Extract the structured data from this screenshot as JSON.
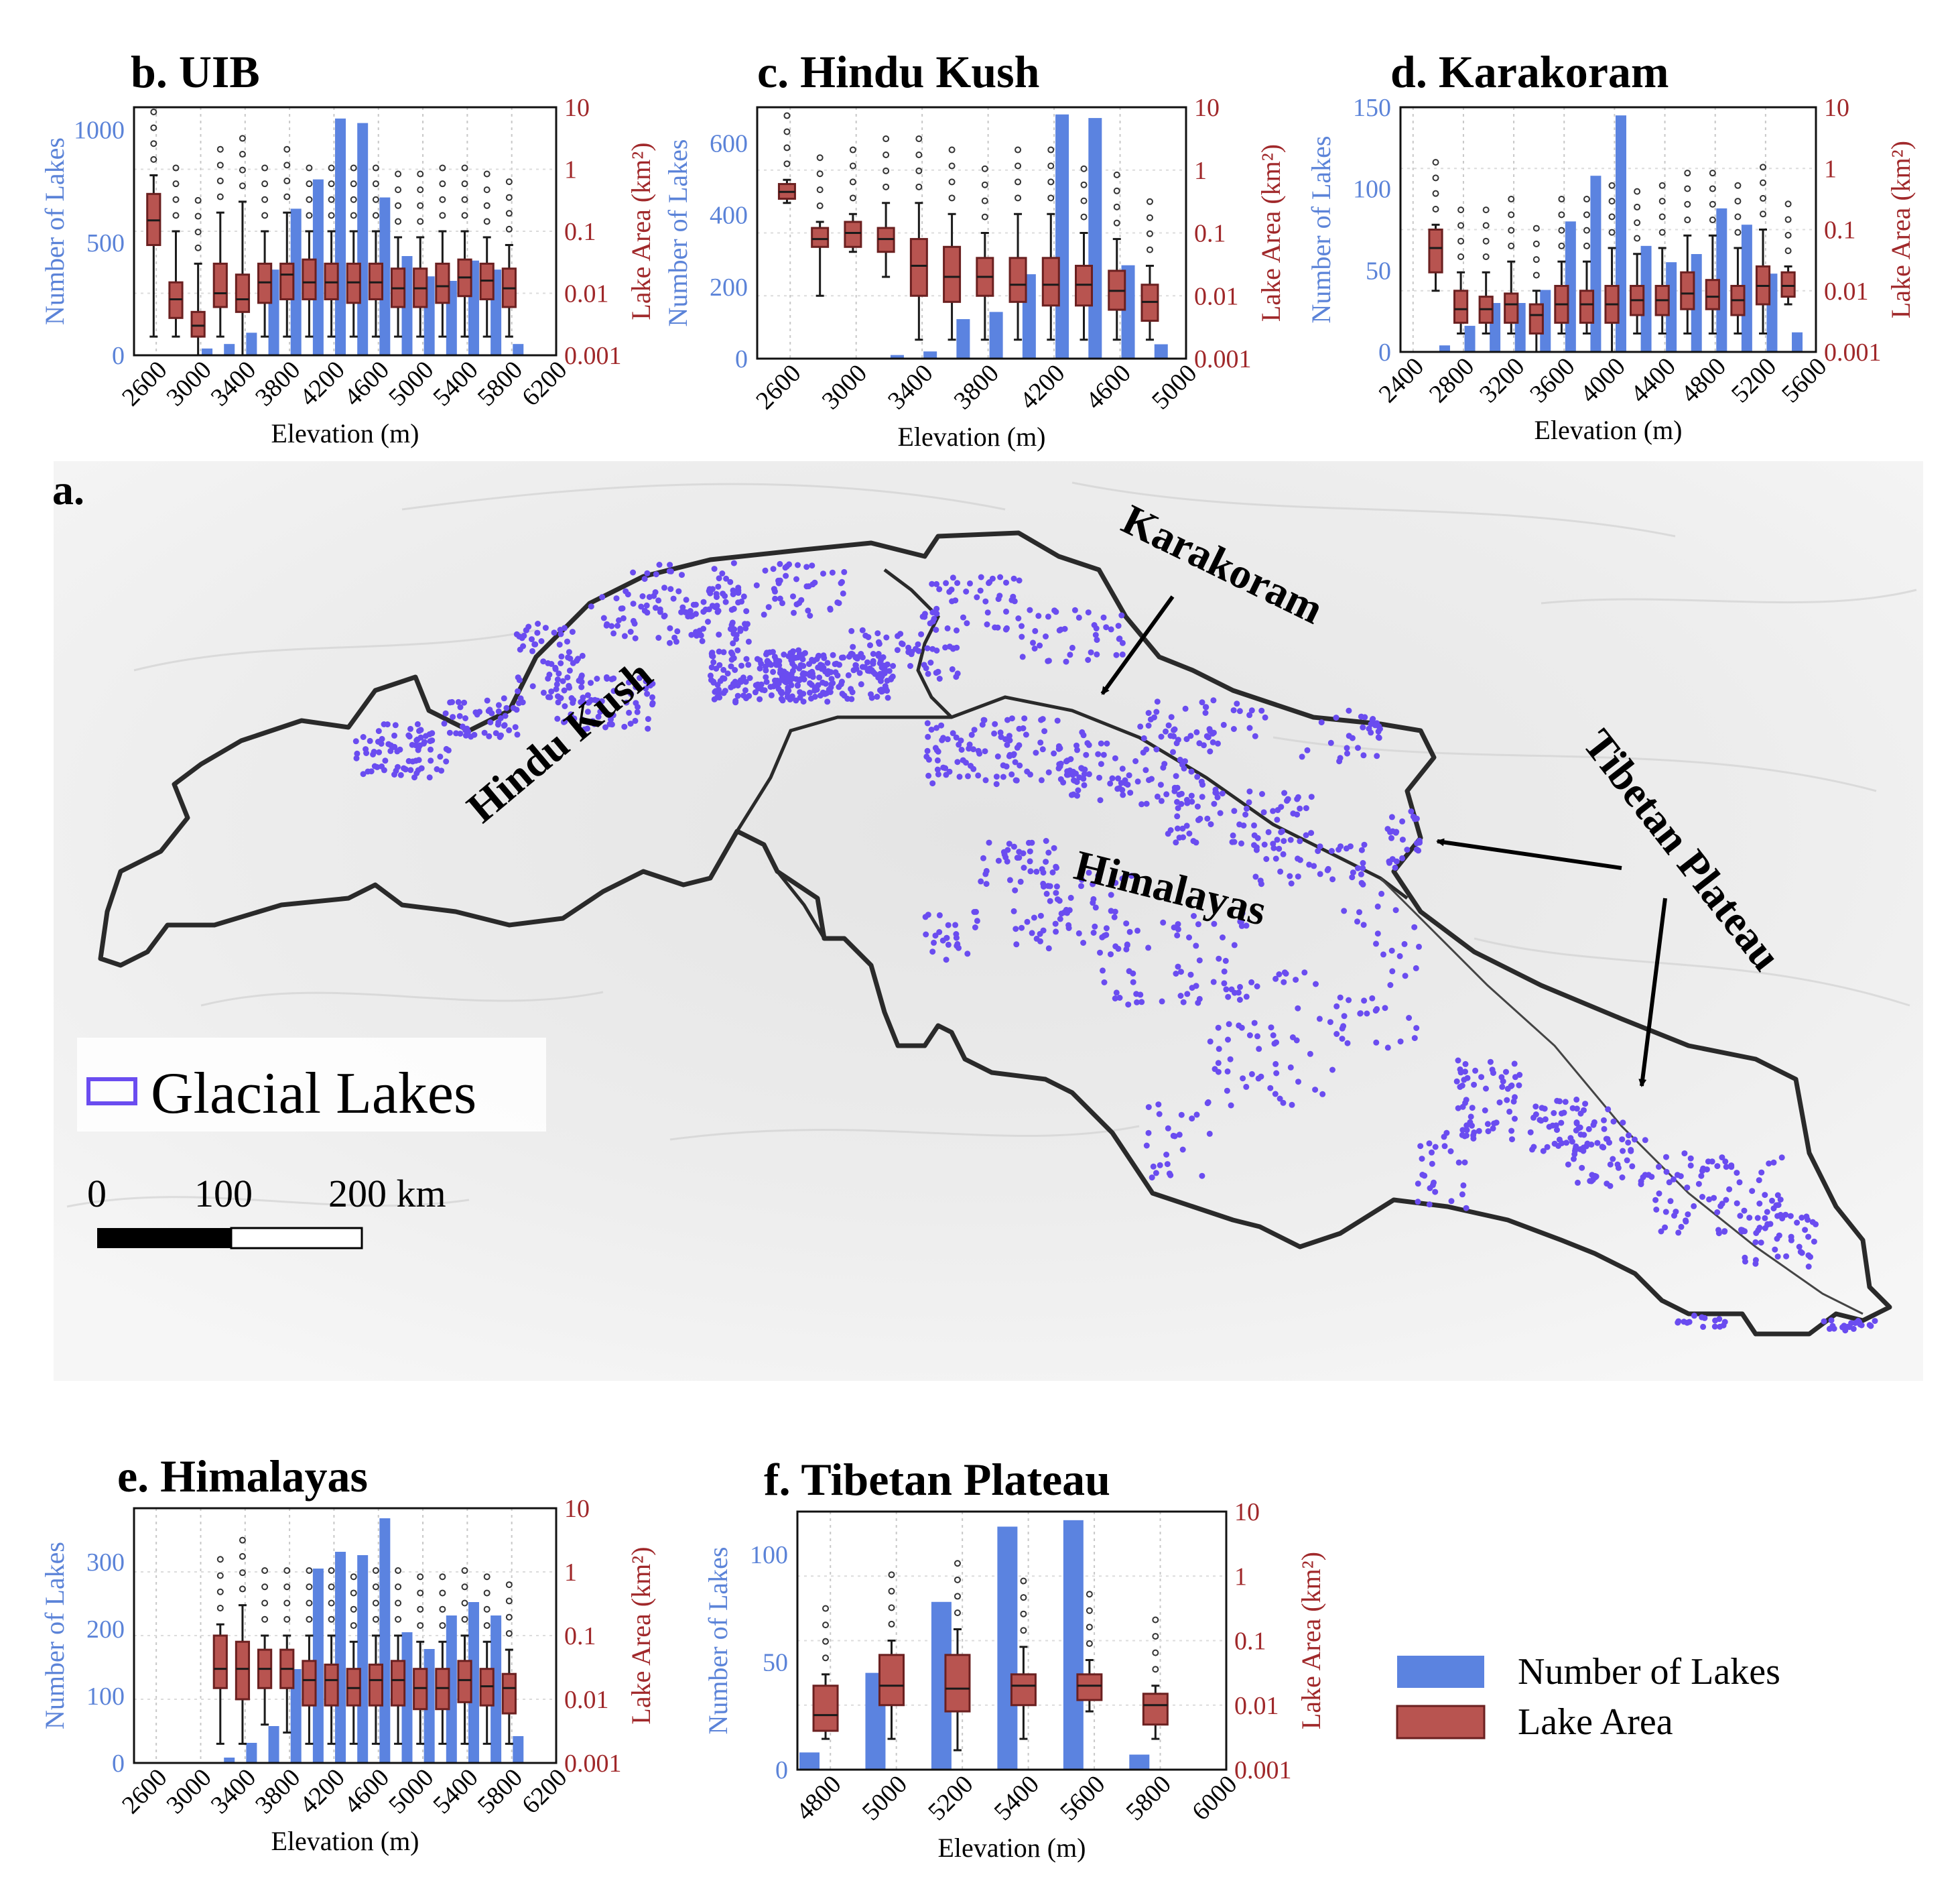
{
  "colors": {
    "bar": "#5b83e0",
    "box": "#b85450",
    "boxStroke": "#6b2020",
    "left_axis_text": "#5b83d8",
    "right_axis_text": "#a0282a",
    "lake": "#6a4cf0",
    "border": "#2a2a2a",
    "map_bg": "#ececec"
  },
  "map": {
    "panel_label": "a.",
    "region_labels": {
      "karakoram": "Karakoram",
      "hindu_kush": "Hindu Kush",
      "himalayas": "Himalayas",
      "tibetan_plateau": "Tibetan Plateau"
    },
    "legend_label": "Glacial Lakes",
    "scale_labels": [
      "0",
      "100",
      "200 km"
    ]
  },
  "legend": {
    "bar_label": "Number of Lakes",
    "box_label": "Lake Area"
  },
  "chart_data": [
    {
      "id": "b",
      "type": "bar",
      "title": "b. UIB",
      "xlabel": "Elevation (m)",
      "ylabel": "Number of Lakes",
      "y2label": "Lake Area (km²)",
      "xlim": [
        2400,
        6200
      ],
      "xticks": [
        2600,
        3000,
        3400,
        3800,
        4200,
        4600,
        5000,
        5400,
        5800,
        6200
      ],
      "ylim": [
        0,
        1100
      ],
      "yticks": [
        0,
        500,
        1000
      ],
      "y2scale": "log",
      "y2ticks": [
        "0.001",
        "0.01",
        "0.1",
        "1",
        "10"
      ],
      "bars": [
        {
          "x": 3000,
          "count": 30
        },
        {
          "x": 3200,
          "count": 50
        },
        {
          "x": 3400,
          "count": 100
        },
        {
          "x": 3600,
          "count": 380
        },
        {
          "x": 3800,
          "count": 650
        },
        {
          "x": 4000,
          "count": 780
        },
        {
          "x": 4200,
          "count": 1050
        },
        {
          "x": 4400,
          "count": 1030
        },
        {
          "x": 4600,
          "count": 700
        },
        {
          "x": 4800,
          "count": 440
        },
        {
          "x": 5000,
          "count": 350
        },
        {
          "x": 5200,
          "count": 330
        },
        {
          "x": 5400,
          "count": 420
        },
        {
          "x": 5600,
          "count": 380
        },
        {
          "x": 5800,
          "count": 50
        }
      ],
      "boxes": [
        {
          "x": 2600,
          "q1": 0.06,
          "med": 0.15,
          "q3": 0.4,
          "lo": 0.002,
          "hi": 0.8
        },
        {
          "x": 2800,
          "q1": 0.004,
          "med": 0.008,
          "q3": 0.015,
          "lo": 0.002,
          "hi": 0.1
        },
        {
          "x": 3000,
          "q1": 0.002,
          "med": 0.003,
          "q3": 0.005,
          "lo": 0.001,
          "hi": 0.03
        },
        {
          "x": 3200,
          "q1": 0.006,
          "med": 0.01,
          "q3": 0.03,
          "lo": 0.002,
          "hi": 0.2
        },
        {
          "x": 3400,
          "q1": 0.005,
          "med": 0.008,
          "q3": 0.02,
          "lo": 0.001,
          "hi": 0.3
        },
        {
          "x": 3600,
          "q1": 0.007,
          "med": 0.015,
          "q3": 0.03,
          "lo": 0.002,
          "hi": 0.1
        },
        {
          "x": 3800,
          "q1": 0.008,
          "med": 0.02,
          "q3": 0.03,
          "lo": 0.002,
          "hi": 0.2
        },
        {
          "x": 4000,
          "q1": 0.008,
          "med": 0.015,
          "q3": 0.035,
          "lo": 0.002,
          "hi": 0.1
        },
        {
          "x": 4200,
          "q1": 0.008,
          "med": 0.015,
          "q3": 0.03,
          "lo": 0.002,
          "hi": 0.1
        },
        {
          "x": 4400,
          "q1": 0.007,
          "med": 0.015,
          "q3": 0.03,
          "lo": 0.002,
          "hi": 0.1
        },
        {
          "x": 4600,
          "q1": 0.008,
          "med": 0.015,
          "q3": 0.03,
          "lo": 0.002,
          "hi": 0.1
        },
        {
          "x": 4800,
          "q1": 0.006,
          "med": 0.012,
          "q3": 0.025,
          "lo": 0.002,
          "hi": 0.08
        },
        {
          "x": 5000,
          "q1": 0.006,
          "med": 0.012,
          "q3": 0.025,
          "lo": 0.002,
          "hi": 0.08
        },
        {
          "x": 5200,
          "q1": 0.007,
          "med": 0.013,
          "q3": 0.03,
          "lo": 0.002,
          "hi": 0.1
        },
        {
          "x": 5400,
          "q1": 0.009,
          "med": 0.018,
          "q3": 0.035,
          "lo": 0.002,
          "hi": 0.1
        },
        {
          "x": 5600,
          "q1": 0.008,
          "med": 0.016,
          "q3": 0.03,
          "lo": 0.002,
          "hi": 0.08
        },
        {
          "x": 5800,
          "q1": 0.006,
          "med": 0.012,
          "q3": 0.025,
          "lo": 0.002,
          "hi": 0.06
        }
      ]
    },
    {
      "id": "c",
      "type": "bar",
      "title": "c. Hindu Kush",
      "xlabel": "Elevation (m)",
      "ylabel": "Number of Lakes",
      "y2label": "Lake Area (km²)",
      "xlim": [
        2400,
        5000
      ],
      "xticks": [
        2600,
        3000,
        3400,
        3800,
        4200,
        4600,
        5000
      ],
      "ylim": [
        0,
        700
      ],
      "yticks": [
        0,
        200,
        400,
        600
      ],
      "y2scale": "log",
      "y2ticks": [
        "0.001",
        "0.01",
        "0.1",
        "1",
        "10"
      ],
      "bars": [
        {
          "x": 3200,
          "count": 10
        },
        {
          "x": 3400,
          "count": 20
        },
        {
          "x": 3600,
          "count": 110
        },
        {
          "x": 3800,
          "count": 130
        },
        {
          "x": 4000,
          "count": 235
        },
        {
          "x": 4200,
          "count": 680
        },
        {
          "x": 4400,
          "count": 670
        },
        {
          "x": 4600,
          "count": 260
        },
        {
          "x": 4800,
          "count": 40
        }
      ],
      "boxes": [
        {
          "x": 2600,
          "q1": 0.35,
          "med": 0.45,
          "q3": 0.6,
          "lo": 0.3,
          "hi": 0.7
        },
        {
          "x": 2800,
          "q1": 0.06,
          "med": 0.08,
          "q3": 0.12,
          "lo": 0.01,
          "hi": 0.15
        },
        {
          "x": 3000,
          "q1": 0.06,
          "med": 0.1,
          "q3": 0.15,
          "lo": 0.05,
          "hi": 0.2
        },
        {
          "x": 3200,
          "q1": 0.05,
          "med": 0.08,
          "q3": 0.12,
          "lo": 0.02,
          "hi": 0.3
        },
        {
          "x": 3400,
          "q1": 0.01,
          "med": 0.03,
          "q3": 0.08,
          "lo": 0.002,
          "hi": 0.3
        },
        {
          "x": 3600,
          "q1": 0.008,
          "med": 0.02,
          "q3": 0.06,
          "lo": 0.002,
          "hi": 0.2
        },
        {
          "x": 3800,
          "q1": 0.01,
          "med": 0.02,
          "q3": 0.04,
          "lo": 0.002,
          "hi": 0.1
        },
        {
          "x": 4000,
          "q1": 0.008,
          "med": 0.015,
          "q3": 0.04,
          "lo": 0.002,
          "hi": 0.2
        },
        {
          "x": 4200,
          "q1": 0.007,
          "med": 0.015,
          "q3": 0.04,
          "lo": 0.002,
          "hi": 0.2
        },
        {
          "x": 4400,
          "q1": 0.007,
          "med": 0.015,
          "q3": 0.03,
          "lo": 0.002,
          "hi": 0.1
        },
        {
          "x": 4600,
          "q1": 0.006,
          "med": 0.012,
          "q3": 0.025,
          "lo": 0.002,
          "hi": 0.08
        },
        {
          "x": 4800,
          "q1": 0.004,
          "med": 0.008,
          "q3": 0.015,
          "lo": 0.002,
          "hi": 0.03
        }
      ]
    },
    {
      "id": "d",
      "type": "bar",
      "title": "d. Karakoram",
      "xlabel": "Elevation (m)",
      "ylabel": "Number of Lakes",
      "y2label": "Lake Area (km²)",
      "xlim": [
        2300,
        5600
      ],
      "xticks": [
        2400,
        2800,
        3200,
        3600,
        4000,
        4400,
        4800,
        5200,
        5600
      ],
      "ylim": [
        0,
        150
      ],
      "yticks": [
        0,
        50,
        100,
        150
      ],
      "y2scale": "log",
      "y2ticks": [
        "0.001",
        "0.01",
        "0.1",
        "1",
        "10"
      ],
      "bars": [
        {
          "x": 2600,
          "count": 4
        },
        {
          "x": 2800,
          "count": 16
        },
        {
          "x": 3000,
          "count": 30
        },
        {
          "x": 3200,
          "count": 30
        },
        {
          "x": 3400,
          "count": 38
        },
        {
          "x": 3600,
          "count": 80
        },
        {
          "x": 3800,
          "count": 108
        },
        {
          "x": 4000,
          "count": 145
        },
        {
          "x": 4200,
          "count": 65
        },
        {
          "x": 4400,
          "count": 55
        },
        {
          "x": 4600,
          "count": 60
        },
        {
          "x": 4800,
          "count": 88
        },
        {
          "x": 5000,
          "count": 78
        },
        {
          "x": 5200,
          "count": 48
        },
        {
          "x": 5400,
          "count": 12
        }
      ],
      "boxes": [
        {
          "x": 2600,
          "q1": 0.02,
          "med": 0.05,
          "q3": 0.1,
          "lo": 0.01,
          "hi": 0.12
        },
        {
          "x": 2800,
          "q1": 0.003,
          "med": 0.005,
          "q3": 0.01,
          "lo": 0.002,
          "hi": 0.02
        },
        {
          "x": 3000,
          "q1": 0.003,
          "med": 0.005,
          "q3": 0.008,
          "lo": 0.002,
          "hi": 0.02
        },
        {
          "x": 3200,
          "q1": 0.003,
          "med": 0.006,
          "q3": 0.009,
          "lo": 0.002,
          "hi": 0.03
        },
        {
          "x": 3400,
          "q1": 0.002,
          "med": 0.004,
          "q3": 0.006,
          "lo": 0.001,
          "hi": 0.01
        },
        {
          "x": 3600,
          "q1": 0.003,
          "med": 0.006,
          "q3": 0.012,
          "lo": 0.002,
          "hi": 0.03
        },
        {
          "x": 3800,
          "q1": 0.003,
          "med": 0.006,
          "q3": 0.01,
          "lo": 0.002,
          "hi": 0.03
        },
        {
          "x": 4000,
          "q1": 0.003,
          "med": 0.006,
          "q3": 0.012,
          "lo": 0.001,
          "hi": 0.05
        },
        {
          "x": 4200,
          "q1": 0.004,
          "med": 0.007,
          "q3": 0.012,
          "lo": 0.002,
          "hi": 0.04
        },
        {
          "x": 4400,
          "q1": 0.004,
          "med": 0.007,
          "q3": 0.012,
          "lo": 0.002,
          "hi": 0.05
        },
        {
          "x": 4600,
          "q1": 0.005,
          "med": 0.009,
          "q3": 0.02,
          "lo": 0.002,
          "hi": 0.08
        },
        {
          "x": 4800,
          "q1": 0.005,
          "med": 0.008,
          "q3": 0.015,
          "lo": 0.002,
          "hi": 0.08
        },
        {
          "x": 5000,
          "q1": 0.004,
          "med": 0.007,
          "q3": 0.012,
          "lo": 0.002,
          "hi": 0.05
        },
        {
          "x": 5200,
          "q1": 0.006,
          "med": 0.012,
          "q3": 0.025,
          "lo": 0.002,
          "hi": 0.1
        },
        {
          "x": 5400,
          "q1": 0.008,
          "med": 0.012,
          "q3": 0.02,
          "lo": 0.006,
          "hi": 0.025
        }
      ]
    },
    {
      "id": "e",
      "type": "bar",
      "title": "e. Himalayas",
      "xlabel": "Elevation (m)",
      "ylabel": "Number of Lakes",
      "y2label": "Lake Area (km²)",
      "xlim": [
        2400,
        6200
      ],
      "xticks": [
        2600,
        3000,
        3400,
        3800,
        4200,
        4600,
        5000,
        5400,
        5800,
        6200
      ],
      "ylim": [
        0,
        380
      ],
      "yticks": [
        0,
        100,
        200,
        300
      ],
      "y2scale": "log",
      "y2ticks": [
        "0.001",
        "0.01",
        "0.1",
        "1",
        "10"
      ],
      "bars": [
        {
          "x": 3200,
          "count": 8
        },
        {
          "x": 3400,
          "count": 30
        },
        {
          "x": 3600,
          "count": 55
        },
        {
          "x": 3800,
          "count": 140
        },
        {
          "x": 4000,
          "count": 290
        },
        {
          "x": 4200,
          "count": 315
        },
        {
          "x": 4400,
          "count": 310
        },
        {
          "x": 4600,
          "count": 365
        },
        {
          "x": 4800,
          "count": 195
        },
        {
          "x": 5000,
          "count": 170
        },
        {
          "x": 5200,
          "count": 220
        },
        {
          "x": 5400,
          "count": 240
        },
        {
          "x": 5600,
          "count": 220
        },
        {
          "x": 5800,
          "count": 40
        }
      ],
      "boxes": [
        {
          "x": 3200,
          "q1": 0.015,
          "med": 0.03,
          "q3": 0.1,
          "lo": 0.002,
          "hi": 0.15
        },
        {
          "x": 3400,
          "q1": 0.01,
          "med": 0.03,
          "q3": 0.08,
          "lo": 0.002,
          "hi": 0.3
        },
        {
          "x": 3600,
          "q1": 0.015,
          "med": 0.03,
          "q3": 0.06,
          "lo": 0.004,
          "hi": 0.1
        },
        {
          "x": 3800,
          "q1": 0.015,
          "med": 0.03,
          "q3": 0.06,
          "lo": 0.003,
          "hi": 0.1
        },
        {
          "x": 4000,
          "q1": 0.008,
          "med": 0.02,
          "q3": 0.04,
          "lo": 0.002,
          "hi": 0.1
        },
        {
          "x": 4200,
          "q1": 0.008,
          "med": 0.02,
          "q3": 0.035,
          "lo": 0.002,
          "hi": 0.1
        },
        {
          "x": 4400,
          "q1": 0.008,
          "med": 0.015,
          "q3": 0.03,
          "lo": 0.002,
          "hi": 0.08
        },
        {
          "x": 4600,
          "q1": 0.008,
          "med": 0.02,
          "q3": 0.035,
          "lo": 0.002,
          "hi": 0.1
        },
        {
          "x": 4800,
          "q1": 0.008,
          "med": 0.02,
          "q3": 0.04,
          "lo": 0.002,
          "hi": 0.1
        },
        {
          "x": 5000,
          "q1": 0.007,
          "med": 0.015,
          "q3": 0.03,
          "lo": 0.002,
          "hi": 0.08
        },
        {
          "x": 5200,
          "q1": 0.007,
          "med": 0.015,
          "q3": 0.03,
          "lo": 0.002,
          "hi": 0.08
        },
        {
          "x": 5400,
          "q1": 0.009,
          "med": 0.02,
          "q3": 0.04,
          "lo": 0.002,
          "hi": 0.1
        },
        {
          "x": 5600,
          "q1": 0.008,
          "med": 0.016,
          "q3": 0.03,
          "lo": 0.002,
          "hi": 0.08
        },
        {
          "x": 5800,
          "q1": 0.006,
          "med": 0.015,
          "q3": 0.025,
          "lo": 0.002,
          "hi": 0.06
        }
      ]
    },
    {
      "id": "f",
      "type": "bar",
      "title": "f. Tibetan Plateau",
      "xlabel": "Elevation (m)",
      "ylabel": "Number of Lakes",
      "y2label": "Lake Area (km²)",
      "xlim": [
        4700,
        6000
      ],
      "xticks": [
        4800,
        5000,
        5200,
        5400,
        5600,
        5800,
        6000
      ],
      "ylim": [
        0,
        120
      ],
      "yticks": [
        0,
        50,
        100
      ],
      "y2scale": "log",
      "y2ticks": [
        "0.001",
        "0.01",
        "0.1",
        "1",
        "10"
      ],
      "bars": [
        {
          "x": 4700,
          "count": 8
        },
        {
          "x": 4900,
          "count": 45
        },
        {
          "x": 5100,
          "count": 78
        },
        {
          "x": 5300,
          "count": 113
        },
        {
          "x": 5500,
          "count": 116
        },
        {
          "x": 5700,
          "count": 7
        }
      ],
      "boxes": [
        {
          "x": 4800,
          "q1": 0.004,
          "med": 0.007,
          "q3": 0.02,
          "lo": 0.003,
          "hi": 0.03
        },
        {
          "x": 5000,
          "q1": 0.01,
          "med": 0.02,
          "q3": 0.06,
          "lo": 0.003,
          "hi": 0.1
        },
        {
          "x": 5200,
          "q1": 0.008,
          "med": 0.018,
          "q3": 0.06,
          "lo": 0.002,
          "hi": 0.15
        },
        {
          "x": 5400,
          "q1": 0.01,
          "med": 0.02,
          "q3": 0.03,
          "lo": 0.003,
          "hi": 0.08
        },
        {
          "x": 5600,
          "q1": 0.012,
          "med": 0.02,
          "q3": 0.03,
          "lo": 0.008,
          "hi": 0.05
        },
        {
          "x": 5800,
          "q1": 0.005,
          "med": 0.01,
          "q3": 0.015,
          "lo": 0.003,
          "hi": 0.02
        }
      ]
    }
  ]
}
